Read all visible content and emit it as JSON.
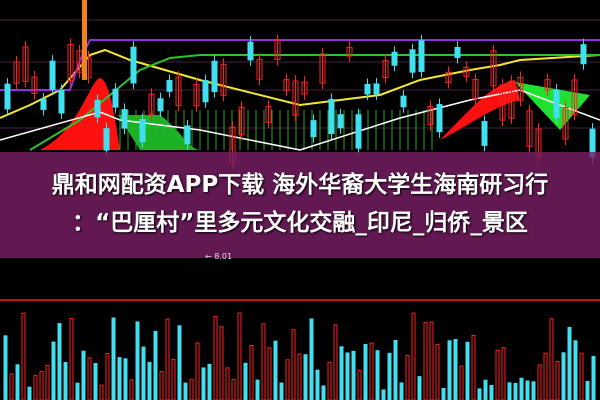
{
  "title_lines": [
    "鼎和网配资APP下载 海外华裔大学生海南研习行",
    "：“巴厘村”里多元文化交融_印尼_归侨_景区"
  ],
  "price_label": "← 8.01",
  "colors": {
    "background": "#000000",
    "overlay": "#781e64",
    "up": "#ff2020",
    "down": "#40e0f0",
    "ma_yellow": "#f5e632",
    "ma_green": "#30c030",
    "ma_purple": "#9030e0",
    "fill_red": "#ff1010",
    "fill_green": "#20e030"
  }
}
